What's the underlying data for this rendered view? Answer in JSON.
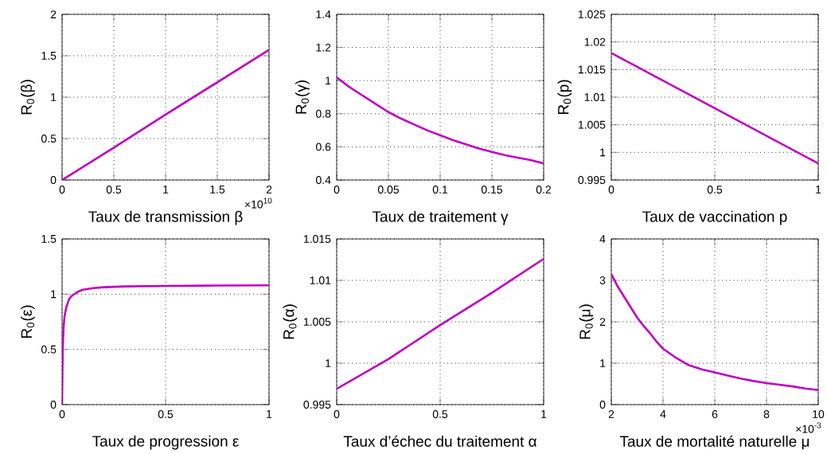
{
  "chart_data": [
    {
      "type": "line",
      "xlabel": "Taux de transmission β",
      "ylabel": "R$_{0}$(β)",
      "color": "#c000c0",
      "grid": true,
      "xlim": [
        0,
        2
      ],
      "ylim": [
        0,
        2
      ],
      "xticks": [
        0,
        0.5,
        1,
        1.5,
        2
      ],
      "yticks": [
        0,
        0.5,
        1,
        1.5,
        2
      ],
      "annotations": [
        "×10$^{10}$"
      ],
      "x": [
        0,
        0.5,
        1,
        1.5,
        2
      ],
      "values": [
        0,
        0.39,
        0.79,
        1.18,
        1.57
      ]
    },
    {
      "type": "line",
      "xlabel": "Taux de traitement γ",
      "ylabel": "R$_{0}$(γ)",
      "color": "#c000c0",
      "grid": true,
      "xlim": [
        0,
        0.2
      ],
      "ylim": [
        0.4,
        1.4
      ],
      "xticks": [
        0,
        0.05,
        0.1,
        0.15,
        0.2
      ],
      "yticks": [
        0.4,
        0.6,
        0.8,
        1,
        1.2,
        1.4
      ],
      "x": [
        0,
        0.0125,
        0.025,
        0.0375,
        0.05,
        0.0625,
        0.075,
        0.0875,
        0.1,
        0.1125,
        0.125,
        0.1375,
        0.15,
        0.1625,
        0.175,
        0.1875,
        0.2
      ],
      "values": [
        1.02,
        0.96,
        0.91,
        0.86,
        0.81,
        0.77,
        0.735,
        0.7,
        0.67,
        0.64,
        0.615,
        0.59,
        0.57,
        0.55,
        0.535,
        0.52,
        0.5
      ]
    },
    {
      "type": "line",
      "xlabel": "Taux de vaccination p",
      "ylabel": "R$_{0}$(p)",
      "color": "#c000c0",
      "grid": true,
      "xlim": [
        0,
        1
      ],
      "ylim": [
        0.995,
        1.025
      ],
      "xticks": [
        0,
        0.5,
        1
      ],
      "yticks": [
        0.995,
        1,
        1.005,
        1.01,
        1.015,
        1.02,
        1.025
      ],
      "x": [
        0,
        0.5,
        1
      ],
      "values": [
        1.018,
        1.008,
        0.998
      ]
    },
    {
      "type": "line",
      "xlabel": "Taux de progression ε",
      "ylabel": "R$_{0}$(ε)",
      "color": "#c000c0",
      "grid": true,
      "xlim": [
        0,
        1
      ],
      "ylim": [
        0,
        1.5
      ],
      "xticks": [
        0,
        0.5,
        1
      ],
      "yticks": [
        0,
        0.5,
        1,
        1.5
      ],
      "x": [
        0,
        0.003,
        0.007,
        0.012,
        0.02,
        0.035,
        0.05,
        0.075,
        0.1,
        0.15,
        0.2,
        0.3,
        0.5,
        0.75,
        1
      ],
      "values": [
        0,
        0.5,
        0.7,
        0.8,
        0.88,
        0.96,
        0.99,
        1.02,
        1.04,
        1.055,
        1.063,
        1.07,
        1.075,
        1.078,
        1.08
      ]
    },
    {
      "type": "line",
      "xlabel": "Taux d’échec du traitement α",
      "ylabel": "R$_{0}$(α)",
      "color": "#c000c0",
      "grid": true,
      "xlim": [
        0,
        1
      ],
      "ylim": [
        0.995,
        1.015
      ],
      "xticks": [
        0,
        0.5,
        1
      ],
      "yticks": [
        0.995,
        1,
        1.005,
        1.01,
        1.015
      ],
      "x": [
        0,
        0.25,
        0.5,
        0.75,
        1
      ],
      "values": [
        0.9969,
        1.0005,
        1.0046,
        1.0085,
        1.0126
      ]
    },
    {
      "type": "line",
      "xlabel": "Taux de mortalité naturelle μ",
      "ylabel": "R$_{0}$(μ)",
      "color": "#c000c0",
      "grid": true,
      "xlim": [
        2,
        10
      ],
      "ylim": [
        0,
        4
      ],
      "xticks": [
        2,
        4,
        6,
        8,
        10
      ],
      "yticks": [
        0,
        1,
        2,
        3,
        4
      ],
      "annotations": [
        "×10$^{-3}$"
      ],
      "x": [
        2,
        2.25,
        2.5,
        2.75,
        3,
        3.25,
        3.5,
        3.75,
        4,
        4.5,
        5,
        5.5,
        6,
        6.5,
        7,
        7.5,
        8,
        8.5,
        9,
        9.5,
        10
      ],
      "values": [
        3.15,
        2.85,
        2.6,
        2.35,
        2.1,
        1.9,
        1.72,
        1.52,
        1.35,
        1.13,
        0.95,
        0.85,
        0.78,
        0.7,
        0.63,
        0.57,
        0.52,
        0.48,
        0.44,
        0.39,
        0.35
      ]
    }
  ]
}
